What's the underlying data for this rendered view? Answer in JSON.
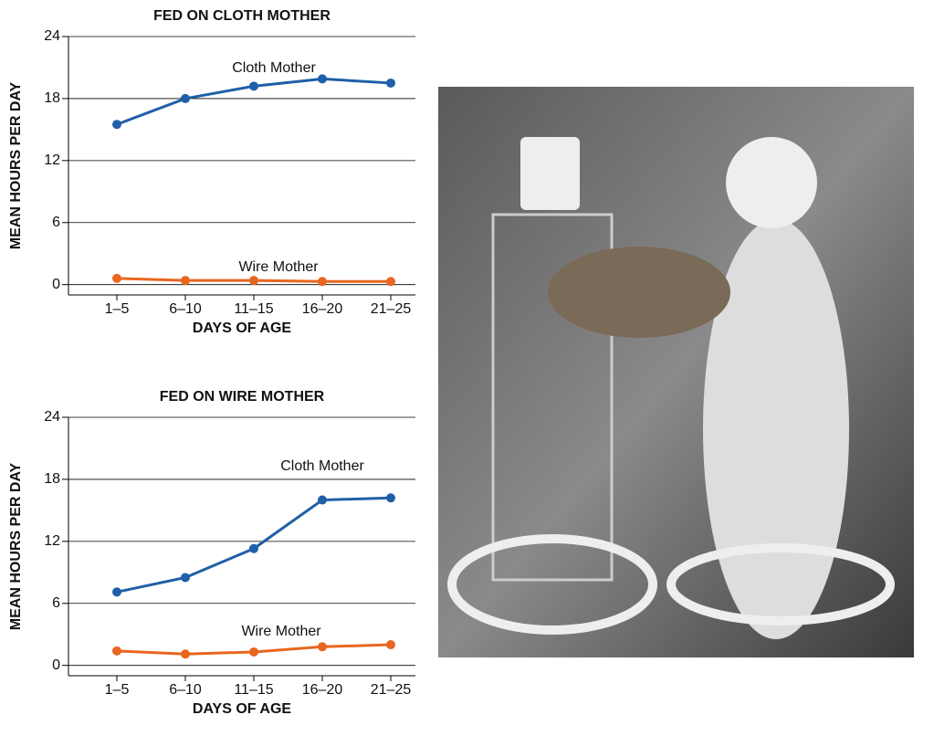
{
  "chart_data": [
    {
      "type": "line",
      "title": "FED ON CLOTH MOTHER",
      "y_label": "MEAN HOURS PER DAY",
      "x_label": "DAYS OF AGE",
      "categories": [
        "1–5",
        "6–10",
        "11–15",
        "16–20",
        "21–25"
      ],
      "ylim": [
        -1,
        24
      ],
      "yticks": [
        0,
        6,
        12,
        18,
        24
      ],
      "grid": true,
      "series": [
        {
          "name": "Cloth Mother",
          "color": "#1f5fa8",
          "values": [
            15.5,
            18,
            19.2,
            19.9,
            19.5
          ]
        },
        {
          "name": "Wire Mother",
          "color": "#e8661f",
          "values": [
            0.6,
            0.4,
            0.4,
            0.3,
            0.3
          ]
        }
      ]
    },
    {
      "type": "line",
      "title": "FED ON WIRE MOTHER",
      "y_label": "MEAN HOURS PER DAY",
      "x_label": "DAYS OF AGE",
      "categories": [
        "1–5",
        "6–10",
        "11–15",
        "16–20",
        "21–25"
      ],
      "ylim": [
        -1,
        24
      ],
      "yticks": [
        0,
        6,
        12,
        18,
        24
      ],
      "grid": true,
      "series": [
        {
          "name": "Cloth Mother",
          "color": "#1f5fa8",
          "values": [
            7.1,
            8.5,
            11.3,
            16,
            16.2
          ]
        },
        {
          "name": "Wire Mother",
          "color": "#e8661f",
          "values": [
            1.4,
            1.1,
            1.3,
            1.8,
            2.0
          ]
        }
      ]
    }
  ]
}
